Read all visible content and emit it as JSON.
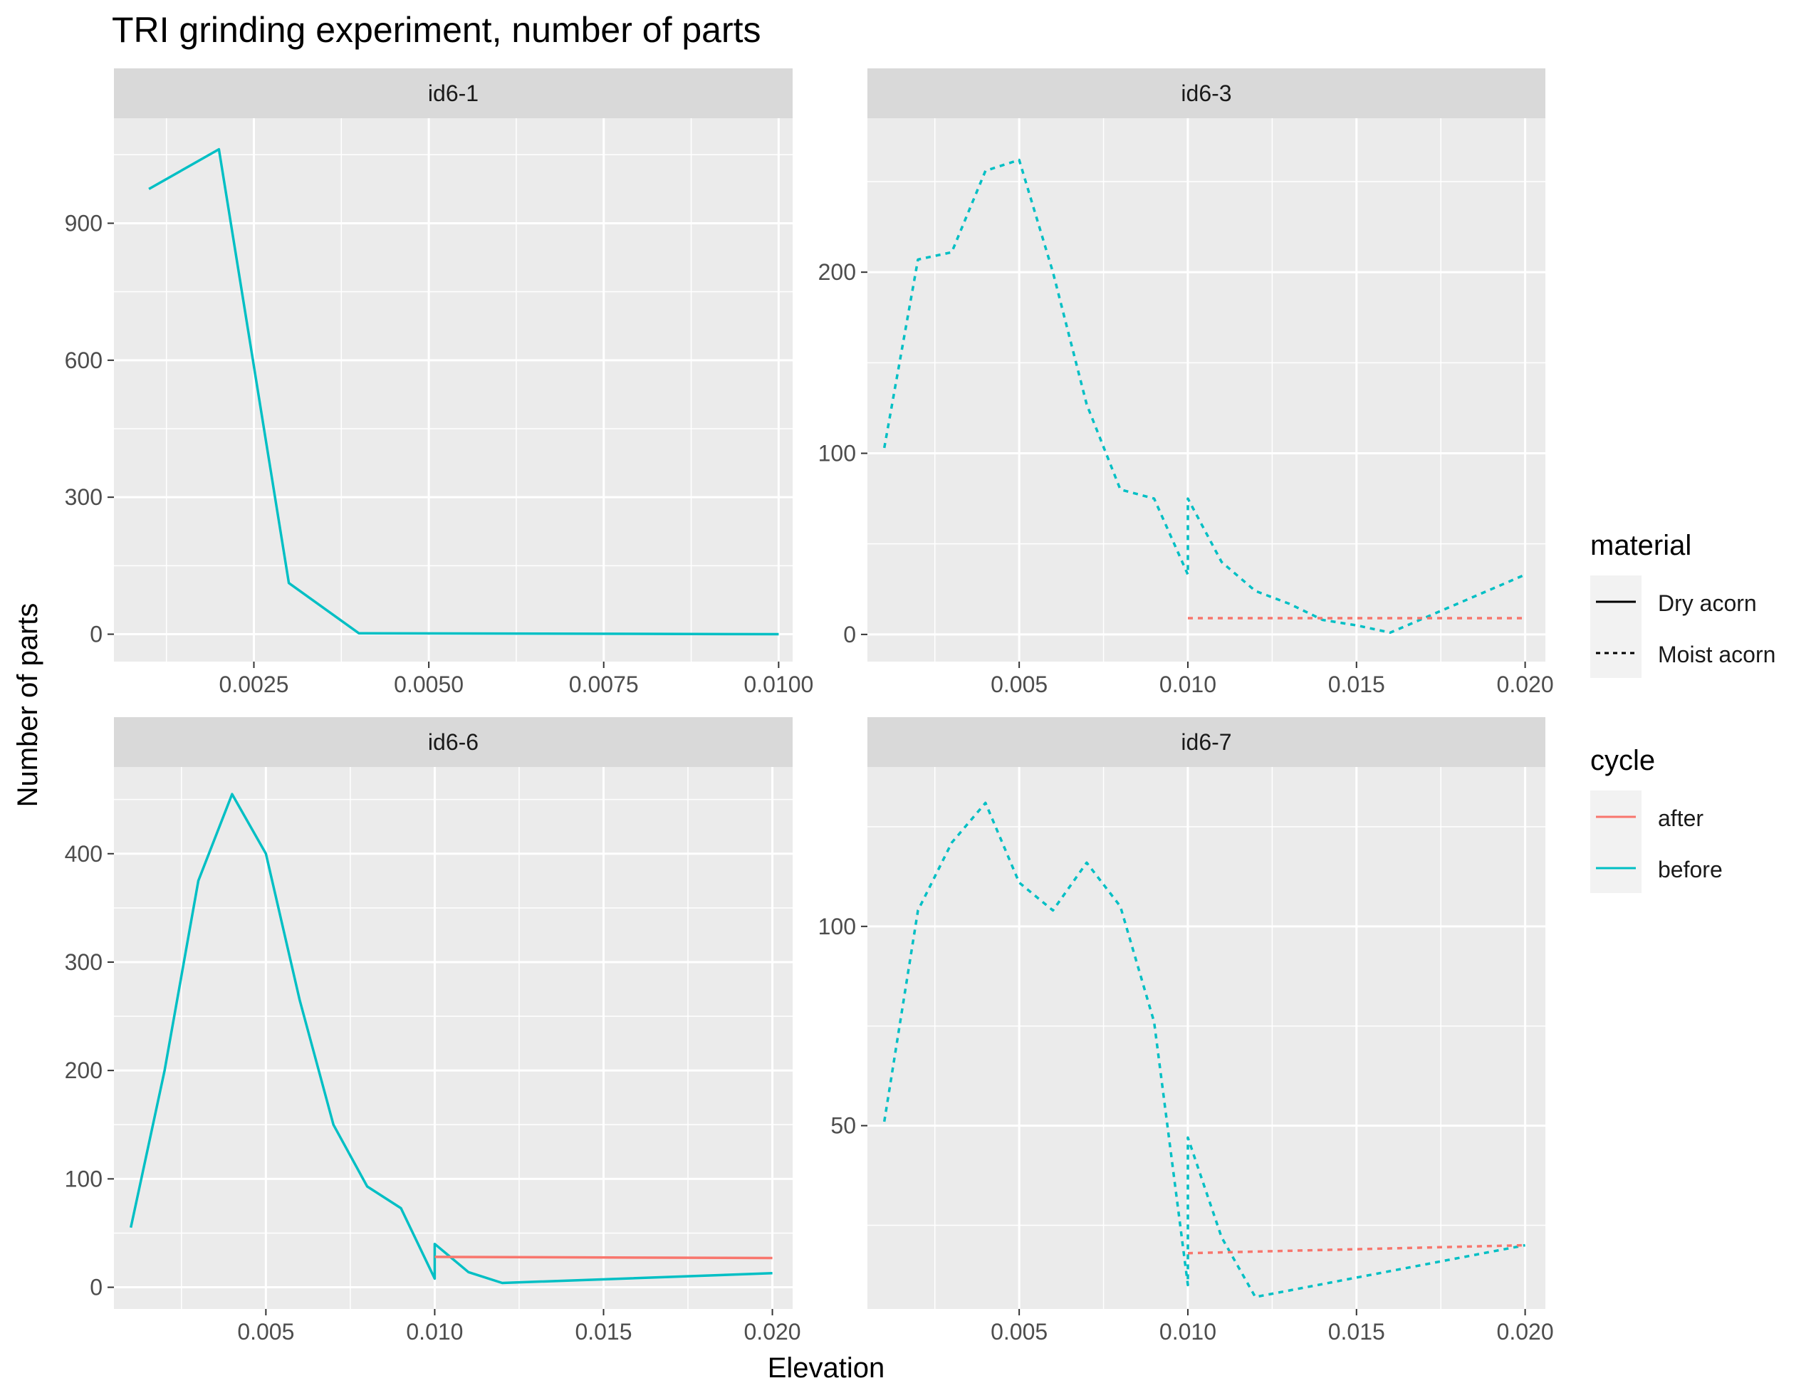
{
  "chart_data": {
    "type": "line",
    "title": "TRI grinding experiment, number of parts",
    "xlabel": "Elevation",
    "ylabel": "Number of parts",
    "legend": {
      "position": "right",
      "material": {
        "title": "material",
        "items": [
          "Dry acorn",
          "Moist acorn"
        ]
      },
      "cycle": {
        "title": "cycle",
        "items": [
          "after",
          "before"
        ]
      }
    },
    "colors": {
      "after": "#F8766D",
      "before": "#00BFC4"
    },
    "linetypes": {
      "Dry acorn": "solid",
      "Moist acorn": "dashed"
    },
    "facets": [
      {
        "strip": "id6-1",
        "xlim": [
          0.0005,
          0.0102
        ],
        "ylim": [
          -60,
          1130
        ],
        "x_ticks": [
          0.0025,
          0.005,
          0.0075,
          0.01
        ],
        "x_tick_labels": [
          "0.0025",
          "0.0050",
          "0.0075",
          "0.0100"
        ],
        "y_ticks": [
          0,
          300,
          600,
          900
        ],
        "y_tick_labels": [
          "0",
          "300",
          "600",
          "900"
        ],
        "series": [
          {
            "cycle": "before",
            "material": "Dry acorn",
            "x": [
              0.001,
              0.002,
              0.003,
              0.004,
              0.01
            ],
            "y": [
              975,
              1062,
              112,
              2,
              0
            ]
          }
        ]
      },
      {
        "strip": "id6-3",
        "xlim": [
          0.0005,
          0.0206
        ],
        "ylim": [
          -15,
          285
        ],
        "x_ticks": [
          0.005,
          0.01,
          0.015,
          0.02
        ],
        "x_tick_labels": [
          "0.005",
          "0.010",
          "0.015",
          "0.020"
        ],
        "y_ticks": [
          0,
          100,
          200
        ],
        "y_tick_labels": [
          "0",
          "100",
          "200"
        ],
        "series": [
          {
            "cycle": "before",
            "material": "Moist acorn",
            "x": [
              0.001,
              0.002,
              0.003,
              0.004,
              0.005,
              0.006,
              0.007,
              0.008,
              0.009,
              0.01,
              0.01,
              0.011,
              0.012,
              0.013,
              0.014,
              0.015,
              0.016,
              0.017,
              0.018,
              0.019,
              0.02
            ],
            "y": [
              103,
              207,
              211,
              256,
              262,
              200,
              127,
              80,
              75,
              33,
              75,
              40,
              24,
              17,
              8,
              5,
              1,
              9,
              17,
              25,
              33
            ]
          },
          {
            "cycle": "after",
            "material": "Moist acorn",
            "x": [
              0.01,
              0.02
            ],
            "y": [
              9,
              9
            ]
          }
        ]
      },
      {
        "strip": "id6-6",
        "xlim": [
          0.0005,
          0.0206
        ],
        "ylim": [
          -20,
          480
        ],
        "x_ticks": [
          0.005,
          0.01,
          0.015,
          0.02
        ],
        "x_tick_labels": [
          "0.005",
          "0.010",
          "0.015",
          "0.020"
        ],
        "y_ticks": [
          0,
          100,
          200,
          300,
          400
        ],
        "y_tick_labels": [
          "0",
          "100",
          "200",
          "300",
          "400"
        ],
        "series": [
          {
            "cycle": "before",
            "material": "Dry acorn",
            "x": [
              0.001,
              0.002,
              0.003,
              0.004,
              0.005,
              0.006,
              0.007,
              0.008,
              0.009,
              0.01,
              0.01,
              0.011,
              0.012,
              0.02
            ],
            "y": [
              55,
              200,
              375,
              455,
              400,
              265,
              150,
              93,
              73,
              8,
              40,
              14,
              4,
              13
            ]
          },
          {
            "cycle": "after",
            "material": "Dry acorn",
            "x": [
              0.01,
              0.02
            ],
            "y": [
              28,
              27
            ]
          }
        ]
      },
      {
        "strip": "id6-7",
        "xlim": [
          0.0005,
          0.0206
        ],
        "ylim": [
          4,
          140
        ],
        "x_ticks": [
          0.005,
          0.01,
          0.015,
          0.02
        ],
        "x_tick_labels": [
          "0.005",
          "0.010",
          "0.015",
          "0.020"
        ],
        "y_ticks": [
          50,
          100
        ],
        "y_tick_labels": [
          "50",
          "100"
        ],
        "series": [
          {
            "cycle": "before",
            "material": "Moist acorn",
            "x": [
              0.001,
              0.002,
              0.003,
              0.004,
              0.005,
              0.006,
              0.007,
              0.008,
              0.009,
              0.01,
              0.01,
              0.011,
              0.012,
              0.02
            ],
            "y": [
              51,
              104,
              121,
              131,
              111,
              104,
              116,
              105,
              76,
              10,
              47,
              22,
              7,
              20
            ]
          },
          {
            "cycle": "after",
            "material": "Moist acorn",
            "x": [
              0.01,
              0.02
            ],
            "y": [
              18,
              20
            ]
          }
        ]
      }
    ]
  }
}
